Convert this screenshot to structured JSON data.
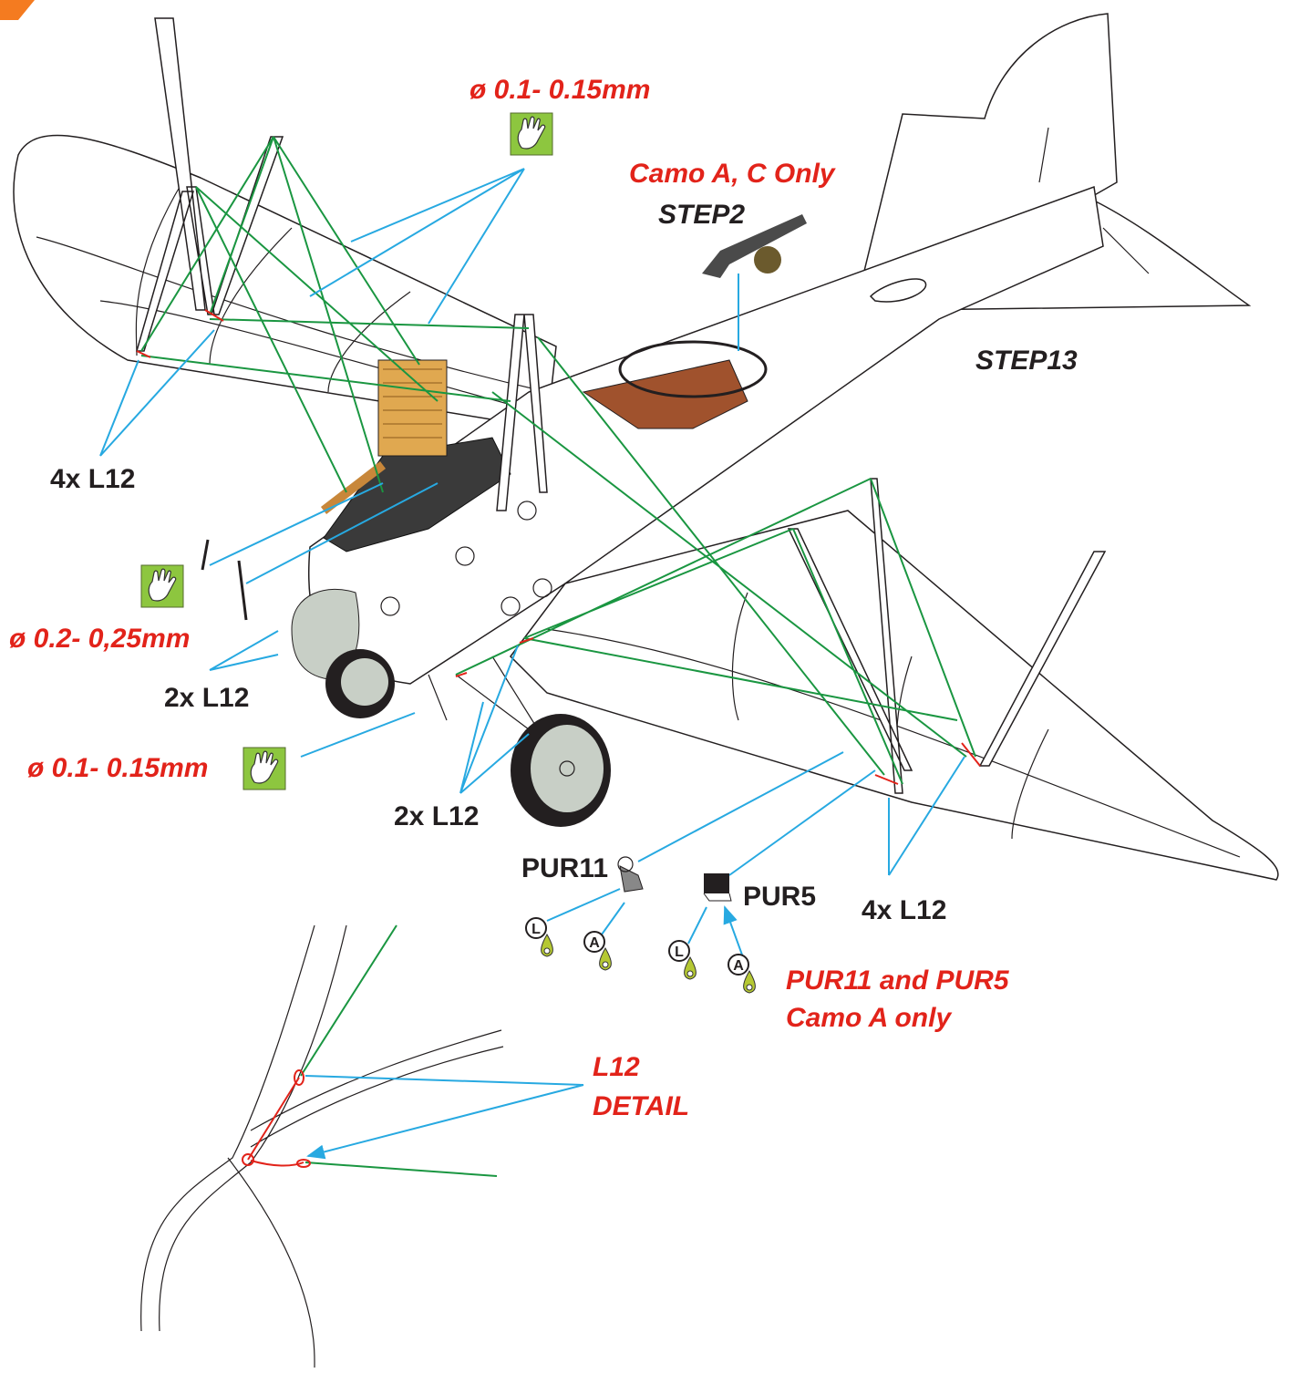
{
  "callouts": {
    "thread_top": "ø 0.1- 0.15mm",
    "camo_ac": "Camo A, C Only",
    "step2": "STEP2",
    "step13": "STEP13",
    "l12_upper_left": "4x L12",
    "thread_mid": "ø 0.2- 0,25mm",
    "l12_nose": "2x L12",
    "thread_bottom": "ø 0.1- 0.15mm",
    "l12_gear": "2x L12",
    "pur11": "PUR11",
    "pur5": "PUR5",
    "l12_lower_right": "4x L12"
  },
  "paint_codes": [
    "L",
    "A",
    "L",
    "A"
  ],
  "note": [
    "PUR11 and PUR5",
    "Camo A only"
  ],
  "detail": [
    "L12",
    "DETAIL"
  ]
}
